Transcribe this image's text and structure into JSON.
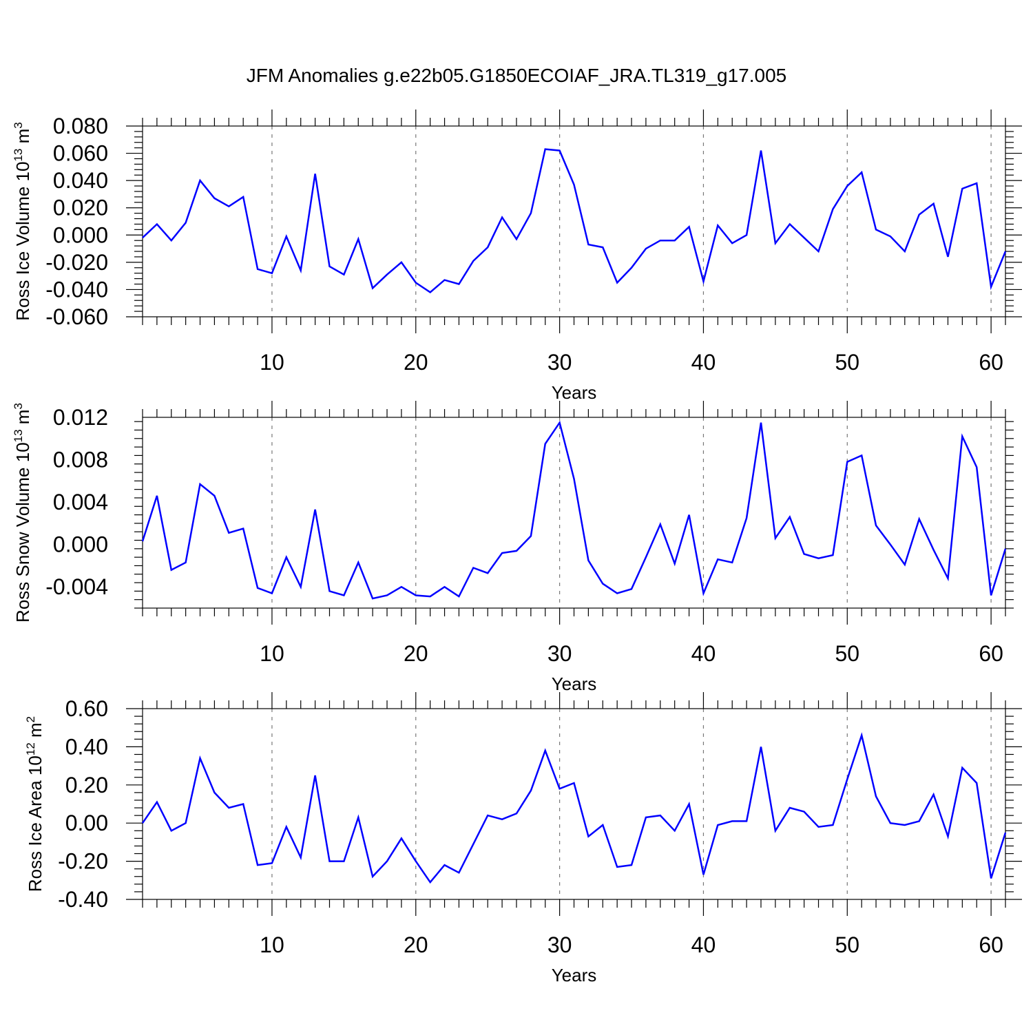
{
  "title": "JFM Anomalies g.e22b05.G1850ECOIAF_JRA.TL319_g17.005",
  "chart_data": [
    {
      "type": "line",
      "ylabel": "Ross Ice Volume 10",
      "ylabel_exp": "13",
      "ylabel_unit": "m",
      "ylabel_unit_exp": "3",
      "xlabel": "Years",
      "xlim": [
        1,
        61
      ],
      "ylim": [
        -0.06,
        0.08
      ],
      "yticks": [
        "-0.060",
        "-0.040",
        "-0.020",
        "0.000",
        "0.020",
        "0.040",
        "0.060",
        "0.080"
      ],
      "ytick_values": [
        -0.06,
        -0.04,
        -0.02,
        0.0,
        0.02,
        0.04,
        0.06,
        0.08
      ],
      "xticks": [
        "10",
        "20",
        "30",
        "40",
        "50",
        "60"
      ],
      "xtick_values": [
        10,
        20,
        30,
        40,
        50,
        60
      ],
      "grid_x": true,
      "color": "#0000ff",
      "x": [
        1,
        2,
        3,
        4,
        5,
        6,
        7,
        8,
        9,
        10,
        11,
        12,
        13,
        14,
        15,
        16,
        17,
        18,
        19,
        20,
        21,
        22,
        23,
        24,
        25,
        26,
        27,
        28,
        29,
        30,
        31,
        32,
        33,
        34,
        35,
        36,
        37,
        38,
        39,
        40,
        41,
        42,
        43,
        44,
        45,
        46,
        47,
        48,
        49,
        50,
        51,
        52,
        53,
        54,
        55,
        56,
        57,
        58,
        59,
        60,
        61
      ],
      "values": [
        -0.002,
        0.008,
        -0.004,
        0.009,
        0.04,
        0.027,
        0.021,
        0.028,
        -0.025,
        -0.028,
        -0.001,
        -0.026,
        0.045,
        -0.023,
        -0.029,
        -0.003,
        -0.039,
        -0.029,
        -0.02,
        -0.035,
        -0.042,
        -0.033,
        -0.036,
        -0.019,
        -0.009,
        0.013,
        -0.003,
        0.016,
        0.063,
        0.062,
        0.037,
        -0.007,
        -0.009,
        -0.035,
        -0.024,
        -0.01,
        -0.004,
        -0.004,
        0.006,
        -0.034,
        0.007,
        -0.006,
        0.0,
        0.062,
        -0.006,
        0.008,
        -0.002,
        -0.012,
        0.019,
        0.036,
        0.046,
        0.004,
        -0.001,
        -0.012,
        0.015,
        0.023,
        -0.016,
        0.034,
        0.038,
        -0.038,
        -0.012
      ]
    },
    {
      "type": "line",
      "ylabel": "Ross Snow Volume 10",
      "ylabel_exp": "13",
      "ylabel_unit": "m",
      "ylabel_unit_exp": "3",
      "xlabel": "Years",
      "xlim": [
        1,
        61
      ],
      "ylim": [
        -0.006,
        0.012
      ],
      "yticks": [
        "-0.004",
        "0.000",
        "0.004",
        "0.008",
        "0.012"
      ],
      "ytick_values": [
        -0.004,
        0.0,
        0.004,
        0.008,
        0.012
      ],
      "xticks": [
        "10",
        "20",
        "30",
        "40",
        "50",
        "60"
      ],
      "xtick_values": [
        10,
        20,
        30,
        40,
        50,
        60
      ],
      "grid_x": true,
      "color": "#0000ff",
      "x": [
        1,
        2,
        3,
        4,
        5,
        6,
        7,
        8,
        9,
        10,
        11,
        12,
        13,
        14,
        15,
        16,
        17,
        18,
        19,
        20,
        21,
        22,
        23,
        24,
        25,
        26,
        27,
        28,
        29,
        30,
        31,
        32,
        33,
        34,
        35,
        36,
        37,
        38,
        39,
        40,
        41,
        42,
        43,
        44,
        45,
        46,
        47,
        48,
        49,
        50,
        51,
        52,
        53,
        54,
        55,
        56,
        57,
        58,
        59,
        60,
        61
      ],
      "values": [
        0.0003,
        0.0046,
        -0.0024,
        -0.0017,
        0.0057,
        0.0046,
        0.0011,
        0.0015,
        -0.0041,
        -0.0046,
        -0.0012,
        -0.004,
        0.0033,
        -0.0044,
        -0.0048,
        -0.0017,
        -0.0051,
        -0.0048,
        -0.004,
        -0.0048,
        -0.0049,
        -0.004,
        -0.0049,
        -0.0022,
        -0.0027,
        -0.0008,
        -0.0006,
        0.0008,
        0.0095,
        0.0115,
        0.0062,
        -0.0015,
        -0.0037,
        -0.0046,
        -0.0042,
        -0.0012,
        0.0019,
        -0.0018,
        0.0028,
        -0.0046,
        -0.0014,
        -0.0017,
        0.0025,
        0.0115,
        0.0006,
        0.0026,
        -0.0009,
        -0.0013,
        -0.001,
        0.0078,
        0.0084,
        0.0018,
        0.0,
        -0.0019,
        0.0024,
        -0.0005,
        -0.0032,
        0.0102,
        0.0073,
        -0.0048,
        -0.0004
      ]
    },
    {
      "type": "line",
      "ylabel": "Ross Ice Area 10",
      "ylabel_exp": "12",
      "ylabel_unit": "m",
      "ylabel_unit_exp": "2",
      "xlabel": "Years",
      "xlim": [
        1,
        61
      ],
      "ylim": [
        -0.4,
        0.6
      ],
      "yticks": [
        "-0.40",
        "-0.20",
        "0.00",
        "0.20",
        "0.40",
        "0.60"
      ],
      "ytick_values": [
        -0.4,
        -0.2,
        0.0,
        0.2,
        0.4,
        0.6
      ],
      "xticks": [
        "10",
        "20",
        "30",
        "40",
        "50",
        "60"
      ],
      "xtick_values": [
        10,
        20,
        30,
        40,
        50,
        60
      ],
      "grid_x": true,
      "color": "#0000ff",
      "x": [
        1,
        2,
        3,
        4,
        5,
        6,
        7,
        8,
        9,
        10,
        11,
        12,
        13,
        14,
        15,
        16,
        17,
        18,
        19,
        20,
        21,
        22,
        23,
        24,
        25,
        26,
        27,
        28,
        29,
        30,
        31,
        32,
        33,
        34,
        35,
        36,
        37,
        38,
        39,
        40,
        41,
        42,
        43,
        44,
        45,
        46,
        47,
        48,
        49,
        50,
        51,
        52,
        53,
        54,
        55,
        56,
        57,
        58,
        59,
        60,
        61
      ],
      "values": [
        0.0,
        0.11,
        -0.04,
        0.0,
        0.34,
        0.16,
        0.08,
        0.1,
        -0.22,
        -0.21,
        -0.02,
        -0.18,
        0.25,
        -0.2,
        -0.2,
        0.03,
        -0.28,
        -0.2,
        -0.08,
        -0.2,
        -0.31,
        -0.22,
        -0.26,
        -0.11,
        0.04,
        0.02,
        0.05,
        0.17,
        0.38,
        0.18,
        0.21,
        -0.07,
        -0.01,
        -0.23,
        -0.22,
        0.03,
        0.04,
        -0.04,
        0.1,
        -0.27,
        -0.01,
        0.01,
        0.01,
        0.4,
        -0.04,
        0.08,
        0.06,
        -0.02,
        -0.01,
        0.23,
        0.46,
        0.14,
        0.0,
        -0.01,
        0.01,
        0.15,
        -0.07,
        0.29,
        0.21,
        -0.29,
        -0.05
      ]
    }
  ]
}
